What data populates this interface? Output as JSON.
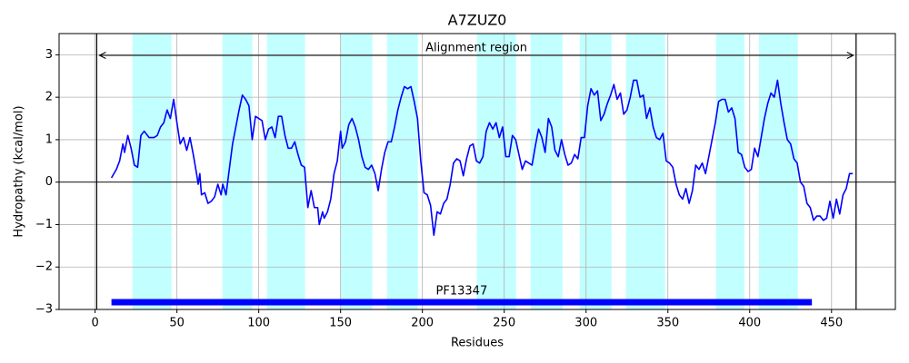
{
  "chart_data": {
    "type": "line",
    "title": "A7ZUZ0",
    "xlabel": "Residues",
    "ylabel": "Hydropathy (kcal/mol)",
    "color": "#0000ff",
    "region_color": "#c2ffff",
    "grid": true,
    "hline": 0,
    "xlim": [
      -22,
      489
    ],
    "ylim": [
      -3,
      3.5
    ],
    "xticks": [
      0,
      50,
      100,
      150,
      200,
      250,
      300,
      350,
      400,
      450
    ],
    "yticks": [
      {
        "value": -3,
        "label": "−3"
      },
      {
        "value": -2,
        "label": "−2"
      },
      {
        "value": -1,
        "label": "−1"
      },
      0,
      1,
      2,
      3
    ],
    "regions": [
      [
        22.8,
        46.7
      ],
      [
        77.8,
        96.1
      ],
      [
        105,
        128.3
      ],
      [
        150,
        169.4
      ],
      [
        178.3,
        197.2
      ],
      [
        233.3,
        257.2
      ],
      [
        266.1,
        285.6
      ],
      [
        296.1,
        315.6
      ],
      [
        324.4,
        348.3
      ],
      [
        379.4,
        396.7
      ],
      [
        405.6,
        429.4
      ]
    ],
    "alignment": {
      "label": "Alignment region",
      "start": 1,
      "end": 465
    },
    "domain": {
      "label": "PF13347",
      "start": 10,
      "end": 438,
      "color": "#0000ff"
    },
    "x": [
      10,
      13,
      15,
      17,
      18,
      20,
      22,
      24,
      26,
      28,
      30,
      33,
      36,
      38,
      40,
      42,
      44,
      46,
      48,
      50,
      52,
      54,
      56,
      58,
      60,
      62,
      63,
      64,
      65,
      67,
      69,
      71,
      73,
      75,
      77,
      78,
      80,
      82,
      84,
      86,
      88,
      90,
      92,
      94,
      96,
      98,
      100,
      102,
      104,
      106,
      108,
      110,
      112,
      114,
      116,
      118,
      120,
      122,
      124,
      126,
      128,
      130,
      132,
      134,
      136,
      137,
      139,
      140,
      142,
      144,
      146,
      148,
      150,
      151,
      153,
      155,
      157,
      159,
      161,
      163,
      165,
      167,
      169,
      171,
      173,
      175,
      177,
      179,
      181,
      183,
      185,
      187,
      189,
      191,
      193,
      195,
      197,
      199,
      201,
      203,
      205,
      207,
      209,
      211,
      213,
      215,
      217,
      219,
      221,
      223,
      225,
      227,
      229,
      231,
      233,
      235,
      237,
      239,
      241,
      243,
      245,
      247,
      249,
      251,
      253,
      255,
      257,
      259,
      261,
      263,
      265,
      267,
      269,
      271,
      273,
      275,
      277,
      279,
      281,
      283,
      285,
      287,
      289,
      291,
      293,
      295,
      297,
      299,
      301,
      303,
      305,
      307,
      309,
      311,
      313,
      315,
      317,
      319,
      321,
      323,
      325,
      327,
      329,
      331,
      333,
      335,
      337,
      339,
      341,
      343,
      345,
      347,
      349,
      351,
      353,
      355,
      357,
      359,
      361,
      363,
      365,
      367,
      369,
      371,
      373,
      375,
      377,
      379,
      381,
      383,
      385,
      387,
      389,
      391,
      393,
      395,
      397,
      399,
      401,
      403,
      405,
      407,
      409,
      411,
      413,
      415,
      417,
      419,
      421,
      423,
      425,
      427,
      429,
      431,
      433,
      435,
      437,
      439,
      441,
      443,
      445,
      447,
      449,
      451,
      453,
      455,
      457,
      459,
      461,
      463
    ],
    "values": [
      0.1,
      0.3,
      0.5,
      0.9,
      0.7,
      1.1,
      0.8,
      0.4,
      0.35,
      1.1,
      1.2,
      1.05,
      1.05,
      1.1,
      1.3,
      1.4,
      1.7,
      1.5,
      1.95,
      1.4,
      0.9,
      1.05,
      0.75,
      1.05,
      0.65,
      0.2,
      -0.05,
      0.2,
      -0.3,
      -0.25,
      -0.5,
      -0.45,
      -0.35,
      -0.05,
      -0.3,
      -0.05,
      -0.3,
      0.3,
      0.9,
      1.3,
      1.7,
      2.05,
      1.95,
      1.8,
      1.0,
      1.55,
      1.5,
      1.45,
      1.0,
      1.25,
      1.3,
      1.05,
      1.55,
      1.55,
      1.1,
      0.8,
      0.8,
      0.95,
      0.65,
      0.4,
      0.35,
      -0.6,
      -0.2,
      -0.6,
      -0.6,
      -1.0,
      -0.7,
      -0.85,
      -0.7,
      -0.4,
      0.2,
      0.5,
      1.2,
      0.8,
      0.95,
      1.35,
      1.5,
      1.3,
      1.0,
      0.6,
      0.35,
      0.3,
      0.4,
      0.2,
      -0.2,
      0.3,
      0.7,
      0.95,
      0.95,
      1.3,
      1.7,
      2.0,
      2.25,
      2.2,
      2.25,
      1.9,
      1.5,
      0.5,
      -0.25,
      -0.3,
      -0.55,
      -1.25,
      -0.7,
      -0.75,
      -0.5,
      -0.4,
      -0.05,
      0.45,
      0.55,
      0.5,
      0.15,
      0.55,
      0.85,
      0.9,
      0.5,
      0.45,
      0.6,
      1.2,
      1.4,
      1.25,
      1.4,
      1.05,
      1.3,
      0.6,
      0.6,
      1.1,
      1.0,
      0.65,
      0.3,
      0.5,
      0.45,
      0.4,
      0.85,
      1.25,
      1.05,
      0.7,
      1.5,
      1.3,
      0.75,
      0.6,
      1.0,
      0.65,
      0.4,
      0.45,
      0.65,
      0.55,
      1.05,
      1.05,
      1.8,
      2.2,
      2.05,
      2.15,
      1.45,
      1.6,
      1.85,
      2.05,
      2.3,
      1.95,
      2.1,
      1.6,
      1.7,
      2.0,
      2.4,
      2.4,
      2.0,
      2.05,
      1.5,
      1.75,
      1.3,
      1.05,
      1.0,
      1.15,
      0.5,
      0.45,
      0.35,
      -0.05,
      -0.3,
      -0.4,
      -0.15,
      -0.5,
      -0.2,
      0.4,
      0.3,
      0.45,
      0.2,
      0.6,
      1.0,
      1.4,
      1.9,
      1.95,
      1.95,
      1.65,
      1.75,
      1.5,
      0.7,
      0.65,
      0.35,
      0.25,
      0.3,
      0.8,
      0.6,
      1.05,
      1.5,
      1.85,
      2.1,
      2.0,
      2.4,
      1.85,
      1.4,
      1.0,
      0.9,
      0.55,
      0.45,
      0.0,
      -0.1,
      -0.5,
      -0.6,
      -0.9,
      -0.8,
      -0.8,
      -0.9,
      -0.85,
      -0.45,
      -0.85,
      -0.4,
      -0.75,
      -0.3,
      -0.15,
      0.2,
      0.2
    ]
  }
}
